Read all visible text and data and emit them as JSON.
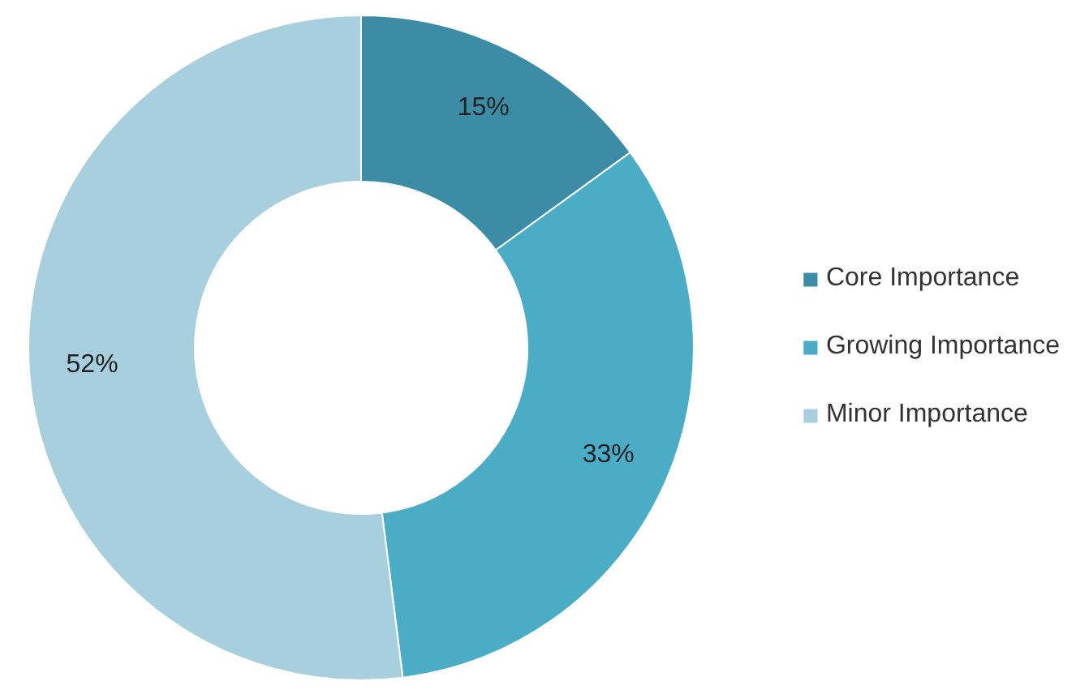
{
  "chart_data": {
    "type": "donut",
    "categories": [
      "Core Importance",
      "Growing Importance",
      "Minor Importance"
    ],
    "values": [
      15,
      33,
      52
    ],
    "colors": [
      "#3d8ca6",
      "#4aacc5",
      "#a8cfdd"
    ],
    "value_labels": [
      "15%",
      "33%",
      "52%"
    ],
    "legend": "right"
  }
}
